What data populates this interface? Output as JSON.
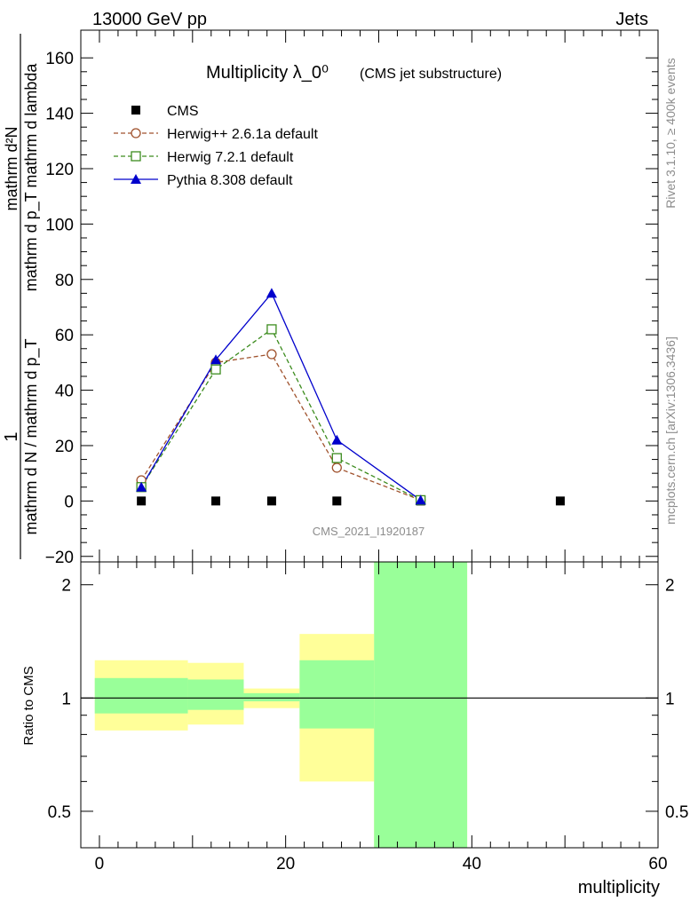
{
  "header": {
    "left": "13000 GeV pp",
    "right": "Jets"
  },
  "side_labels": {
    "rivet": "Rivet 3.1.10, ≥ 400k events",
    "mcplots": "mcplots.cern.ch [arXiv:1306.3436]"
  },
  "colors": {
    "cms": "#000000",
    "herwig261": "#a0522d",
    "herwig721": "#3c8c1e",
    "pythia": "#0000cc",
    "band_stat": "#99ff99",
    "band_syst": "#ffff99",
    "watermark": "#8c8c8c"
  },
  "chart_data": [
    {
      "type": "line",
      "title": "Multiplicity λ_0⁰",
      "subtitle": "(CMS jet substructure)",
      "ylabel_fraction_numerator": "1",
      "ylabel_fraction_denominator": "mathrm d N / mathrm d p_T",
      "ylabel_derivative_numerator": "mathrm d²N",
      "ylabel_derivative_denominator": "mathrm d p_T mathrm d lambda",
      "watermark": "CMS_2021_I1920187",
      "xlim": [
        -2,
        60
      ],
      "ylim": [
        -22,
        170
      ],
      "yticks": [
        -20,
        0,
        20,
        40,
        60,
        80,
        100,
        120,
        140,
        160
      ],
      "legend_position": "top-left",
      "series": [
        {
          "name": "CMS",
          "marker": "square",
          "x": [
            4.5,
            12.5,
            18.5,
            25.5,
            34.5,
            49.5
          ],
          "y": [
            0,
            0,
            0,
            0,
            0,
            0
          ]
        },
        {
          "name": "Herwig++ 2.6.1a default",
          "marker": "circle-open",
          "dashed": true,
          "x": [
            4.5,
            12.5,
            18.5,
            25.5,
            34.5
          ],
          "y": [
            7.5,
            50,
            53,
            12,
            0.3
          ]
        },
        {
          "name": "Herwig 7.2.1 default",
          "marker": "square-open",
          "dashed": true,
          "x": [
            4.5,
            12.5,
            18.5,
            25.5,
            34.5
          ],
          "y": [
            5,
            47.5,
            62,
            15.5,
            0.3
          ]
        },
        {
          "name": "Pythia 8.308 default",
          "marker": "triangle",
          "dashed": false,
          "x": [
            4.5,
            12.5,
            18.5,
            25.5,
            34.5
          ],
          "y": [
            5,
            51,
            75,
            22,
            0.3
          ]
        }
      ]
    },
    {
      "type": "area",
      "ylabel": "Ratio to CMS",
      "xlabel": "multiplicity",
      "ylog": true,
      "xlim": [
        -2,
        60
      ],
      "ylim": [
        0.4,
        2.3
      ],
      "xticks": [
        0,
        20,
        40,
        60
      ],
      "yticks": [
        0.5,
        1,
        2
      ],
      "reference": 1,
      "bins": [
        {
          "x0": -0.5,
          "x1": 9.5,
          "stat": [
            0.91,
            1.13
          ],
          "syst": [
            0.82,
            1.26
          ]
        },
        {
          "x0": 9.5,
          "x1": 15.5,
          "stat": [
            0.93,
            1.12
          ],
          "syst": [
            0.85,
            1.24
          ]
        },
        {
          "x0": 15.5,
          "x1": 21.5,
          "stat": [
            0.98,
            1.03
          ],
          "syst": [
            0.94,
            1.06
          ]
        },
        {
          "x0": 21.5,
          "x1": 29.5,
          "stat": [
            0.83,
            1.26
          ],
          "syst": [
            0.6,
            1.48
          ]
        },
        {
          "x0": 29.5,
          "x1": 39.5,
          "stat": [
            0.4,
            2.3
          ],
          "syst": [
            0.4,
            2.3
          ]
        }
      ]
    }
  ]
}
